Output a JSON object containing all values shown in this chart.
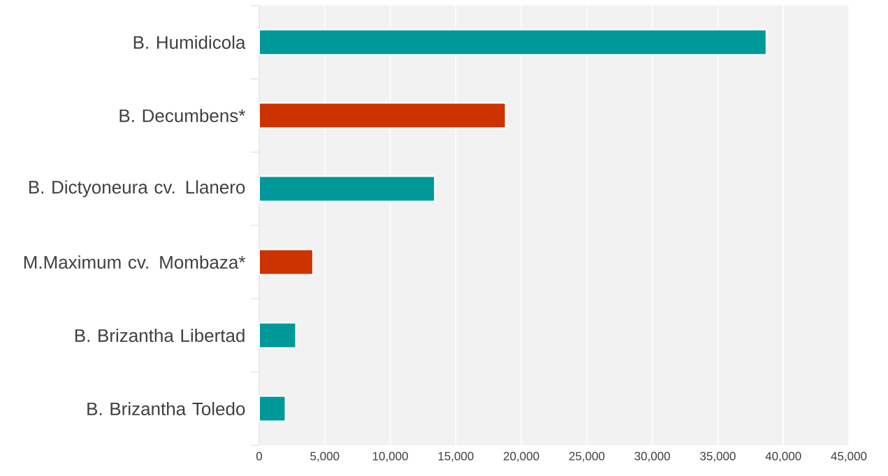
{
  "chart_data": {
    "type": "bar",
    "orientation": "horizontal",
    "categories": [
      "B. Humidicola",
      "B. Decumbens*",
      "B. Dictyoneura cv. Llanero",
      "M.Maximum cv. Mombaza*",
      "B. Brizantha Libertad",
      "B. Brizantha Toledo"
    ],
    "values": [
      38700,
      18800,
      13400,
      4100,
      2800,
      2000
    ],
    "colors": [
      "#009999",
      "#cc3300",
      "#009999",
      "#cc3300",
      "#009999",
      "#009999"
    ],
    "xlim": [
      0,
      45000
    ],
    "xticks": [
      0,
      {
        "value": 5000,
        "label": "5,000"
      },
      {
        "value": 10000,
        "label": "10,000"
      },
      {
        "value": 15000,
        "label": "15,000"
      },
      {
        "value": 20000,
        "label": "20,000"
      },
      {
        "value": 25000,
        "label": "25,000"
      },
      {
        "value": 30000,
        "label": "30,000"
      },
      {
        "value": 35000,
        "label": "35,000"
      },
      {
        "value": 40000,
        "label": "40,000"
      },
      {
        "value": 45000,
        "label": "45,000"
      }
    ],
    "grid": "x"
  }
}
